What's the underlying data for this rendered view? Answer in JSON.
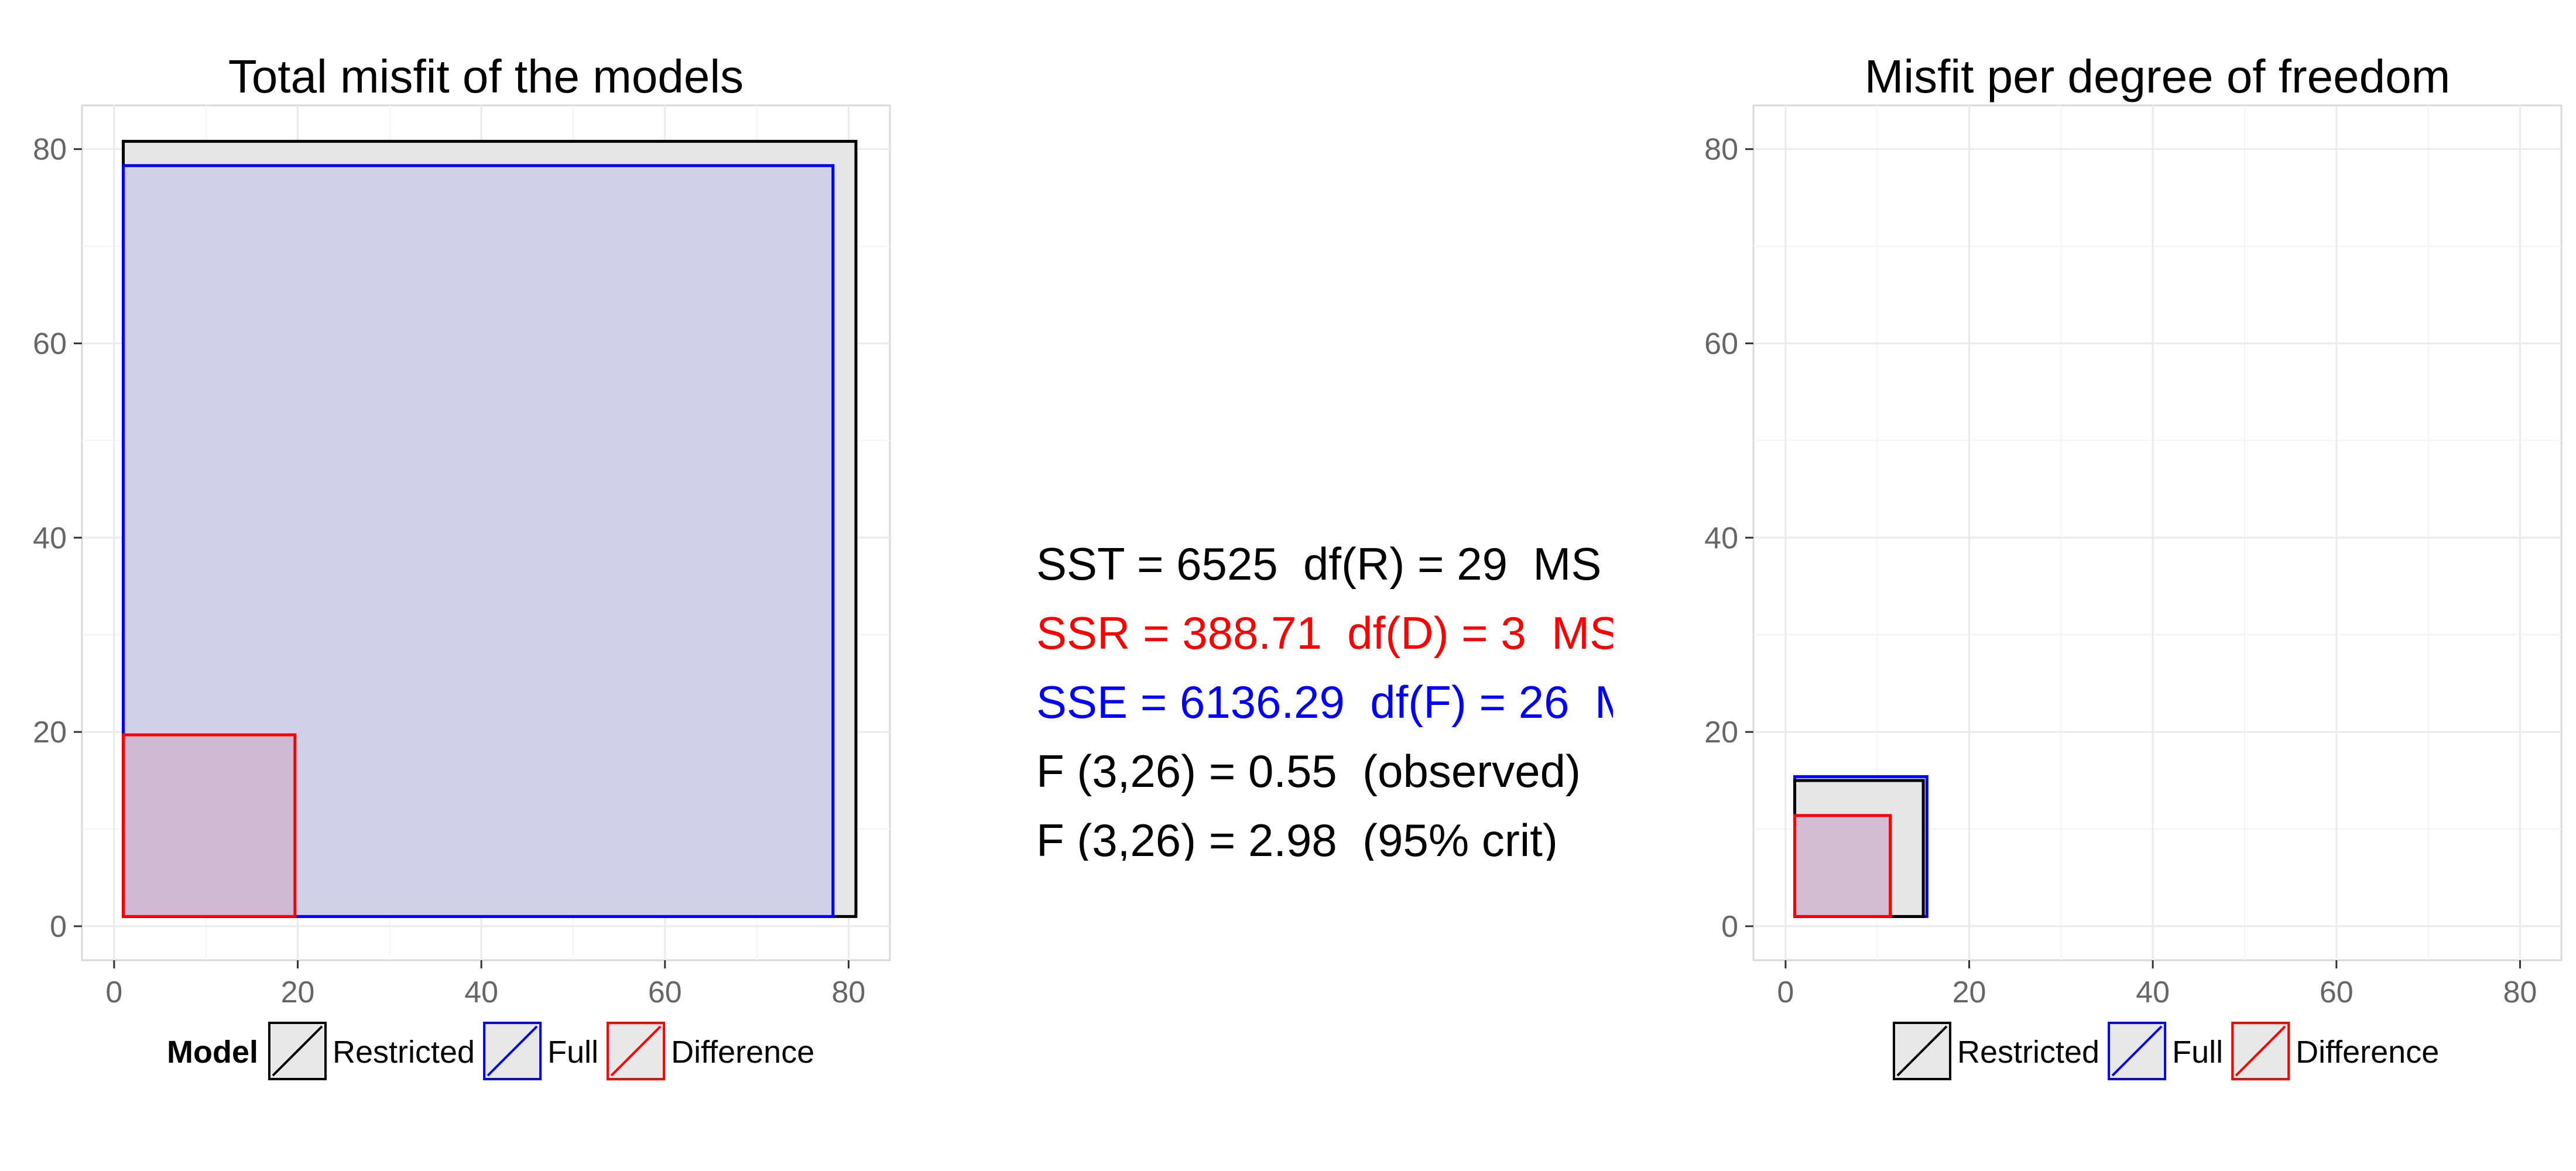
{
  "colors": {
    "restricted": "#000000",
    "full": "#0000ff",
    "difference": "#ff0000",
    "restricted_fill": "#e6e6e6",
    "full_fill": "#cbcbe8",
    "difference_fill": "#cfb5cf",
    "grid": "#ebebeb",
    "panel_border": "#d9d9d9",
    "tick_text": "#666666"
  },
  "stats": {
    "lines": [
      {
        "text": "SST = 6525  df(R) = 29  MS",
        "color": "#000000"
      },
      {
        "text": "SSR = 388.71  df(D) = 3  MS",
        "color": "#ff0000"
      },
      {
        "text": "SSE = 6136.29  df(F) = 26  M",
        "color": "#0000ff"
      },
      {
        "text": "F (3,26) = 0.55  (observed)",
        "color": "#000000"
      },
      {
        "text": "F (3,26) = 2.98  (95% crit)",
        "color": "#000000"
      }
    ]
  },
  "chart_data": [
    {
      "type": "area",
      "title": "Total misfit of the models",
      "xlabel": "",
      "ylabel": "",
      "xlim": [
        -3.5,
        84.5
      ],
      "ylim": [
        -3.5,
        84.5
      ],
      "x_ticks": [
        0,
        20,
        40,
        60,
        80
      ],
      "y_ticks": [
        0,
        20,
        40,
        60,
        80
      ],
      "grid": true,
      "legend": {
        "title": "Model",
        "position": "bottom",
        "entries": [
          {
            "label": "Restricted",
            "key": "restricted"
          },
          {
            "label": "Full",
            "key": "full"
          },
          {
            "label": "Difference",
            "key": "difference"
          }
        ]
      },
      "series": [
        {
          "name": "Restricted",
          "key": "restricted",
          "x0": 1,
          "y0": 1,
          "x1": 80.8,
          "y1": 80.8
        },
        {
          "name": "Full",
          "key": "full",
          "x0": 1,
          "y0": 1,
          "x1": 78.3,
          "y1": 78.3
        },
        {
          "name": "Difference",
          "key": "difference",
          "x0": 1,
          "y0": 1,
          "x1": 19.7,
          "y1": 19.7
        }
      ]
    },
    {
      "type": "area",
      "title": "Misfit per degree of freedom",
      "xlabel": "",
      "ylabel": "",
      "xlim": [
        -3.5,
        84.5
      ],
      "ylim": [
        -3.5,
        84.5
      ],
      "x_ticks": [
        0,
        20,
        40,
        60,
        80
      ],
      "y_ticks": [
        0,
        20,
        40,
        60,
        80
      ],
      "grid": true,
      "legend": {
        "title": "",
        "position": "bottom",
        "entries": [
          {
            "label": "Restricted",
            "key": "restricted"
          },
          {
            "label": "Full",
            "key": "full"
          },
          {
            "label": "Difference",
            "key": "difference"
          }
        ]
      },
      "series": [
        {
          "name": "Restricted",
          "key": "restricted",
          "x0": 1,
          "y0": 1,
          "x1": 15.0,
          "y1": 15.0
        },
        {
          "name": "Full",
          "key": "full",
          "x0": 1,
          "y0": 1,
          "x1": 15.4,
          "y1": 15.4
        },
        {
          "name": "Difference",
          "key": "difference",
          "x0": 1,
          "y0": 1,
          "x1": 11.4,
          "y1": 11.4
        }
      ]
    }
  ]
}
